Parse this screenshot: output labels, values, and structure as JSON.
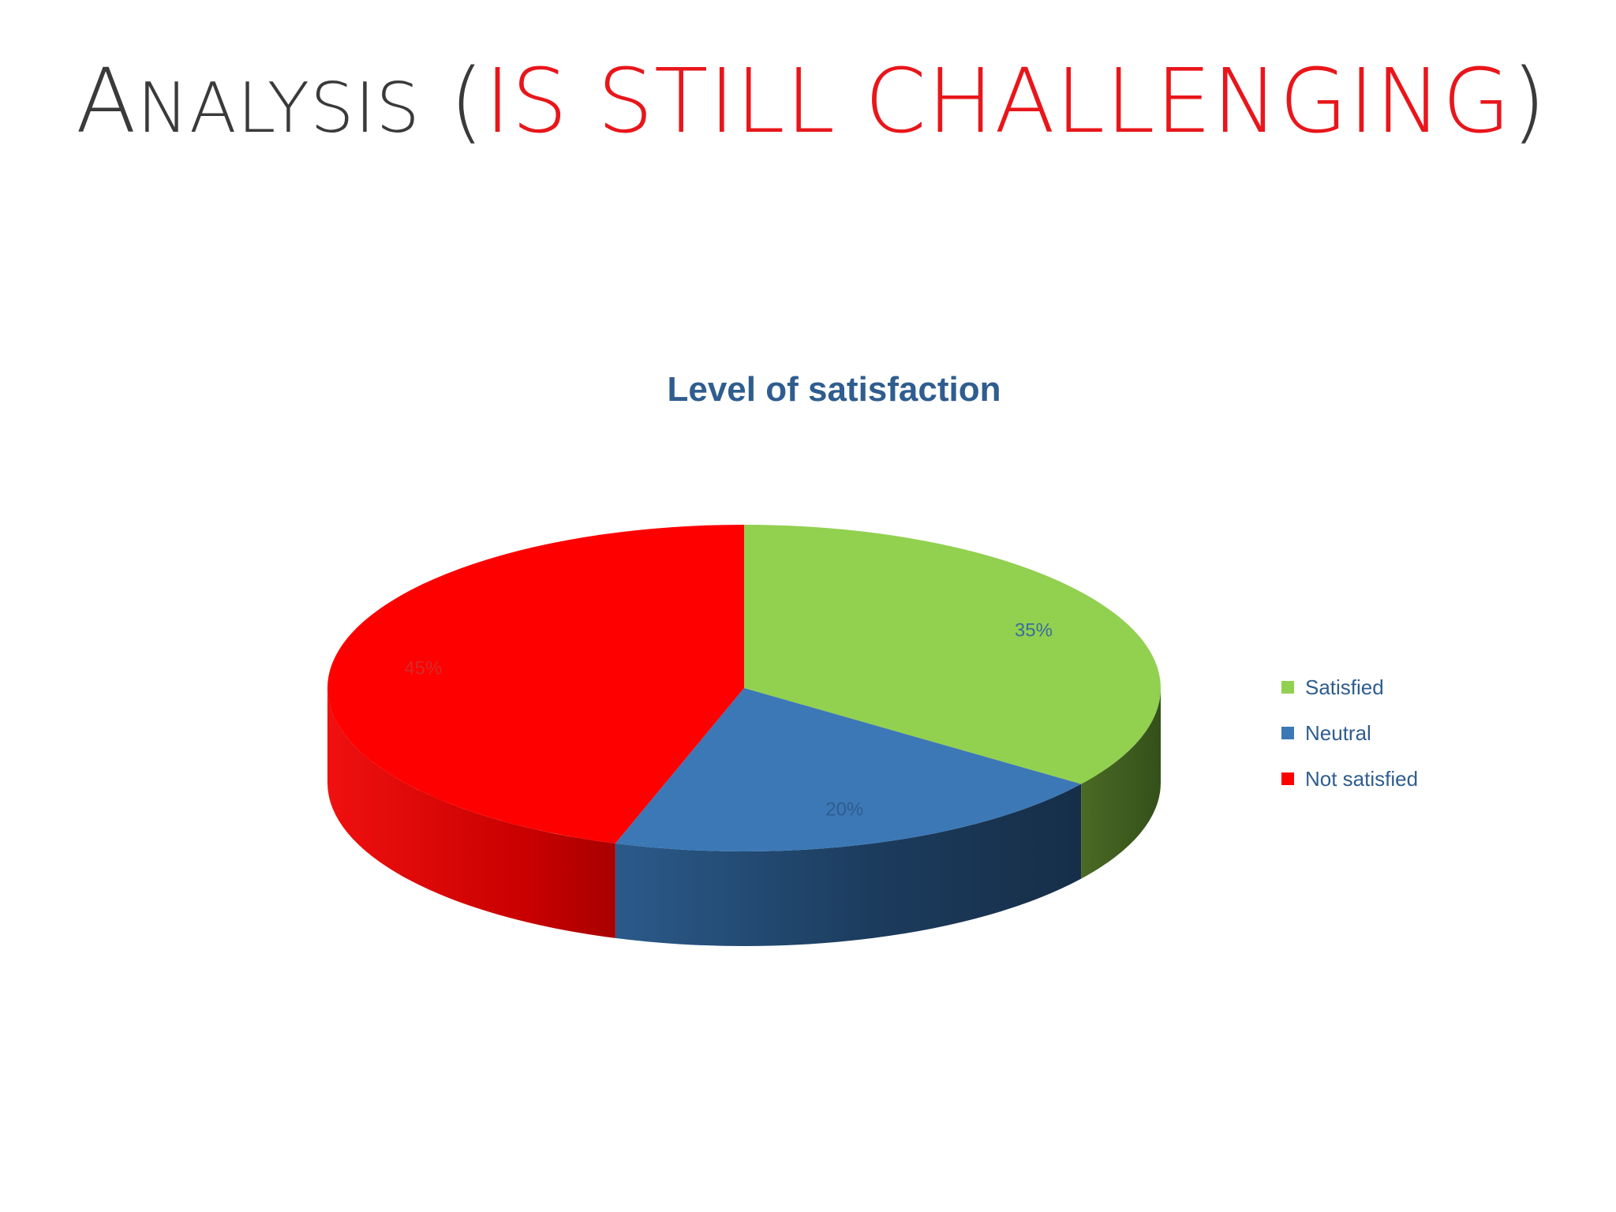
{
  "slide": {
    "title_initial": "A",
    "title_rest": "NALYSIS",
    "title_open": " (",
    "title_accent": "IS STILL CHALLENGING",
    "title_close": ")",
    "colors": {
      "title": "#3a3a3a",
      "accent": "#e8161b"
    }
  },
  "chart_data": {
    "type": "pie",
    "title": "Level of satisfaction",
    "categories": [
      "Satisfied",
      "Neutral",
      "Not satisfied"
    ],
    "values": [
      35,
      20,
      45
    ],
    "labels": [
      "35%",
      "20%",
      "45%"
    ],
    "colors": [
      "#92d050",
      "#3c78b5",
      "#ff0000"
    ],
    "label_colors": [
      "#3a6e9c",
      "#2e5d90",
      "#d62a2a"
    ],
    "legend": "right",
    "style": "3d"
  }
}
